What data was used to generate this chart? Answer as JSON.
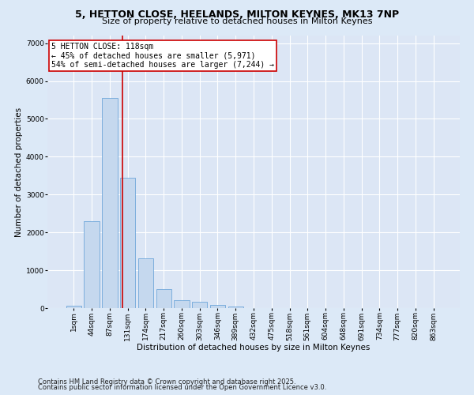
{
  "title_line1": "5, HETTON CLOSE, HEELANDS, MILTON KEYNES, MK13 7NP",
  "title_line2": "Size of property relative to detached houses in Milton Keynes",
  "xlabel": "Distribution of detached houses by size in Milton Keynes",
  "ylabel": "Number of detached properties",
  "categories": [
    "1sqm",
    "44sqm",
    "87sqm",
    "131sqm",
    "174sqm",
    "217sqm",
    "260sqm",
    "303sqm",
    "346sqm",
    "389sqm",
    "432sqm",
    "475sqm",
    "518sqm",
    "561sqm",
    "604sqm",
    "648sqm",
    "691sqm",
    "734sqm",
    "777sqm",
    "820sqm",
    "863sqm"
  ],
  "values": [
    60,
    2300,
    5560,
    3450,
    1320,
    510,
    205,
    175,
    85,
    45,
    0,
    0,
    0,
    0,
    0,
    0,
    0,
    0,
    0,
    0,
    0
  ],
  "bar_color": "#c5d8ee",
  "bar_edgecolor": "#5b9bd5",
  "vline_color": "#cc0000",
  "vline_x_index": 2.72,
  "annotation_box_text": "5 HETTON CLOSE: 118sqm\n← 45% of detached houses are smaller (5,971)\n54% of semi-detached houses are larger (7,244) →",
  "ylim": [
    0,
    7200
  ],
  "yticks": [
    0,
    1000,
    2000,
    3000,
    4000,
    5000,
    6000,
    7000
  ],
  "bg_color": "#dce6f5",
  "grid_color": "#ffffff",
  "footer_line1": "Contains HM Land Registry data © Crown copyright and database right 2025.",
  "footer_line2": "Contains public sector information licensed under the Open Government Licence v3.0.",
  "title_fontsize": 9,
  "subtitle_fontsize": 8,
  "axis_label_fontsize": 7.5,
  "tick_fontsize": 6.5,
  "annotation_fontsize": 7,
  "footer_fontsize": 6
}
